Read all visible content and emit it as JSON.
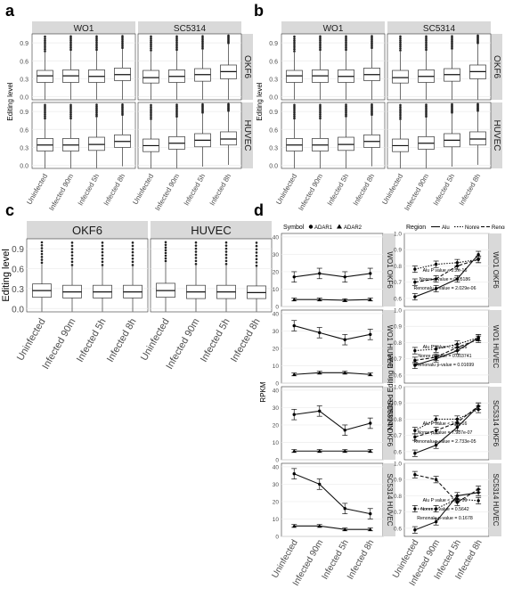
{
  "chart_data": [
    {
      "panel": "a",
      "type": "box",
      "ylabel": "Editing level",
      "columns": [
        "WO1",
        "SC5314"
      ],
      "rows": [
        "OKF6",
        "HUVEC"
      ],
      "categories": [
        "Uninfected",
        "Infected 90m",
        "Infected 5h",
        "Infected 8h"
      ],
      "ylim": [
        0,
        1
      ],
      "yticks": [
        "0.0",
        "0.3",
        "0.6",
        "0.9"
      ],
      "boxes": [
        [
          [
            [
              0.24,
              0.35,
              0.44
            ],
            [
              0.24,
              0.35,
              0.45
            ],
            [
              0.24,
              0.34,
              0.45
            ],
            [
              0.27,
              0.37,
              0.48
            ]
          ],
          [
            [
              0.23,
              0.32,
              0.44
            ],
            [
              0.24,
              0.34,
              0.45
            ],
            [
              0.26,
              0.37,
              0.47
            ],
            [
              0.3,
              0.42,
              0.53
            ]
          ]
        ],
        [
          [
            [
              0.24,
              0.34,
              0.45
            ],
            [
              0.24,
              0.34,
              0.45
            ],
            [
              0.25,
              0.35,
              0.47
            ],
            [
              0.3,
              0.4,
              0.51
            ]
          ],
          [
            [
              0.23,
              0.33,
              0.44
            ],
            [
              0.27,
              0.37,
              0.48
            ],
            [
              0.31,
              0.42,
              0.53
            ],
            [
              0.34,
              0.44,
              0.56
            ]
          ]
        ]
      ]
    },
    {
      "panel": "b",
      "type": "box",
      "ylabel": "Editing level",
      "columns": [
        "WO1",
        "SC5314"
      ],
      "rows": [
        "OKF6",
        "HUVEC"
      ],
      "categories": [
        "Uninfected",
        "Infected 90m",
        "Infected 5h",
        "Infected 8h"
      ],
      "ylim": [
        0,
        1
      ],
      "yticks": [
        "0.0",
        "0.3",
        "0.6",
        "0.9"
      ],
      "boxes": [
        [
          [
            [
              0.24,
              0.35,
              0.44
            ],
            [
              0.24,
              0.35,
              0.45
            ],
            [
              0.24,
              0.34,
              0.45
            ],
            [
              0.27,
              0.37,
              0.48
            ]
          ],
          [
            [
              0.23,
              0.32,
              0.44
            ],
            [
              0.24,
              0.34,
              0.45
            ],
            [
              0.26,
              0.37,
              0.47
            ],
            [
              0.3,
              0.42,
              0.53
            ]
          ]
        ],
        [
          [
            [
              0.24,
              0.34,
              0.45
            ],
            [
              0.24,
              0.34,
              0.45
            ],
            [
              0.25,
              0.35,
              0.47
            ],
            [
              0.3,
              0.4,
              0.51
            ]
          ],
          [
            [
              0.23,
              0.33,
              0.44
            ],
            [
              0.27,
              0.37,
              0.48
            ],
            [
              0.31,
              0.42,
              0.53
            ],
            [
              0.34,
              0.44,
              0.56
            ]
          ]
        ]
      ]
    },
    {
      "panel": "c",
      "type": "box",
      "ylabel": "Editing level",
      "columns": [
        "OKF6",
        "HUVEC"
      ],
      "categories": [
        "Uninfected",
        "Infected 90m",
        "Infected 5h",
        "Infected 8h"
      ],
      "ylim": [
        0,
        1
      ],
      "yticks": [
        "0.0",
        "0.3",
        "0.6",
        "0.9"
      ],
      "boxes": [
        [
          [
            0.17,
            0.27,
            0.37
          ],
          [
            0.16,
            0.25,
            0.35
          ],
          [
            0.16,
            0.25,
            0.35
          ],
          [
            0.16,
            0.25,
            0.35
          ]
        ],
        [
          [
            0.17,
            0.27,
            0.38
          ],
          [
            0.15,
            0.25,
            0.35
          ],
          [
            0.15,
            0.25,
            0.35
          ],
          [
            0.15,
            0.24,
            0.34
          ]
        ]
      ]
    },
    {
      "panel": "d-left",
      "type": "line",
      "ylabel": "RPKM",
      "legend_title": "Symbol",
      "legend_items": [
        "ADAR1",
        "ADAR2"
      ],
      "categories": [
        "Uninfected",
        "Infected 90m",
        "Infected 5h",
        "Infected 8h"
      ],
      "yticks": [
        "0",
        "10",
        "20",
        "30",
        "40"
      ],
      "ylim": [
        0,
        40
      ],
      "panels": [
        {
          "label": "WO1 OKF6",
          "series": [
            {
              "name": "ADAR1",
              "values": [
                17,
                19,
                17,
                19
              ]
            },
            {
              "name": "ADAR2",
              "values": [
                4,
                4,
                3.6,
                4
              ]
            }
          ]
        },
        {
          "label": "WO1 HUVEC",
          "series": [
            {
              "name": "ADAR1",
              "values": [
                33,
                29,
                25,
                28
              ]
            },
            {
              "name": "ADAR2",
              "values": [
                5,
                6,
                6,
                5
              ]
            }
          ]
        },
        {
          "label": "SC5314 OKF6",
          "series": [
            {
              "name": "ADAR1",
              "values": [
                26,
                28,
                17,
                21
              ]
            },
            {
              "name": "ADAR2",
              "values": [
                5,
                5,
                5,
                5
              ]
            }
          ]
        },
        {
          "label": "SC5314 HUVEC",
          "series": [
            {
              "name": "ADAR1",
              "values": [
                36,
                30,
                16,
                13
              ]
            },
            {
              "name": "ADAR2",
              "values": [
                6,
                6,
                4,
                4
              ]
            }
          ]
        }
      ]
    },
    {
      "panel": "d-right",
      "type": "line",
      "ylabel": "Normalized Editing level",
      "legend_title": "Region",
      "legend_items": [
        "Alu",
        "Nonre",
        "Renonalu"
      ],
      "categories": [
        "Uninfected",
        "Infected 90m",
        "Infected 5h",
        "Infected 8h"
      ],
      "yticks": [
        "0.6",
        "0.7",
        "0.8",
        "0.9",
        "1.0"
      ],
      "ylim": [
        0.55,
        1.0
      ],
      "panels": [
        {
          "label": "WO1 OKF6",
          "annotations": [
            "Alu P value < 2.2e-16",
            "Nonre p-value = 0.05186",
            "Renonalu p-value = 2.029e-06"
          ],
          "series": [
            {
              "name": "Alu",
              "values": [
                0.61,
                0.66,
                0.72,
                0.87
              ]
            },
            {
              "name": "Nonre",
              "values": [
                0.78,
                0.81,
                0.82,
                0.84
              ]
            },
            {
              "name": "Renonalu",
              "values": [
                0.7,
                0.72,
                0.8,
                0.84
              ]
            }
          ]
        },
        {
          "label": "WO1 HUVEC",
          "annotations": [
            "Alu P value < 2.2e-16",
            "Nonre p-value = 0.003741",
            "Renonalu p-value = 0.01699"
          ],
          "series": [
            {
              "name": "Alu",
              "values": [
                0.66,
                0.7,
                0.75,
                0.83
              ]
            },
            {
              "name": "Nonre",
              "values": [
                0.75,
                0.76,
                0.79,
                0.83
              ]
            },
            {
              "name": "Renonalu",
              "values": [
                0.69,
                0.71,
                0.77,
                0.82
              ]
            }
          ]
        },
        {
          "label": "SC5314 OKF6",
          "annotations": [
            "Alu P value < 2.2e-16",
            "Nonre p-value = 7.987e-07",
            "Renonalu p-value = 2.733e-05"
          ],
          "series": [
            {
              "name": "Alu",
              "values": [
                0.59,
                0.64,
                0.75,
                0.88
              ]
            },
            {
              "name": "Nonre",
              "values": [
                0.73,
                0.8,
                0.8,
                0.86
              ]
            },
            {
              "name": "Renonalu",
              "values": [
                0.69,
                0.73,
                0.78,
                0.88
              ]
            }
          ]
        },
        {
          "label": "SC5314 HUVEC",
          "annotations": [
            "Alu P value < 2.2e-16",
            "Nonre p-value = 0.5642",
            "Renonalu p-value = 0.1678"
          ],
          "series": [
            {
              "name": "Alu",
              "values": [
                0.59,
                0.64,
                0.8,
                0.82
              ]
            },
            {
              "name": "Nonre",
              "values": [
                0.72,
                0.72,
                0.78,
                0.77
              ]
            },
            {
              "name": "Renonalu",
              "values": [
                0.93,
                0.9,
                0.76,
                0.84
              ]
            }
          ]
        }
      ]
    }
  ],
  "panel_letters": [
    "a",
    "b",
    "c",
    "d"
  ]
}
